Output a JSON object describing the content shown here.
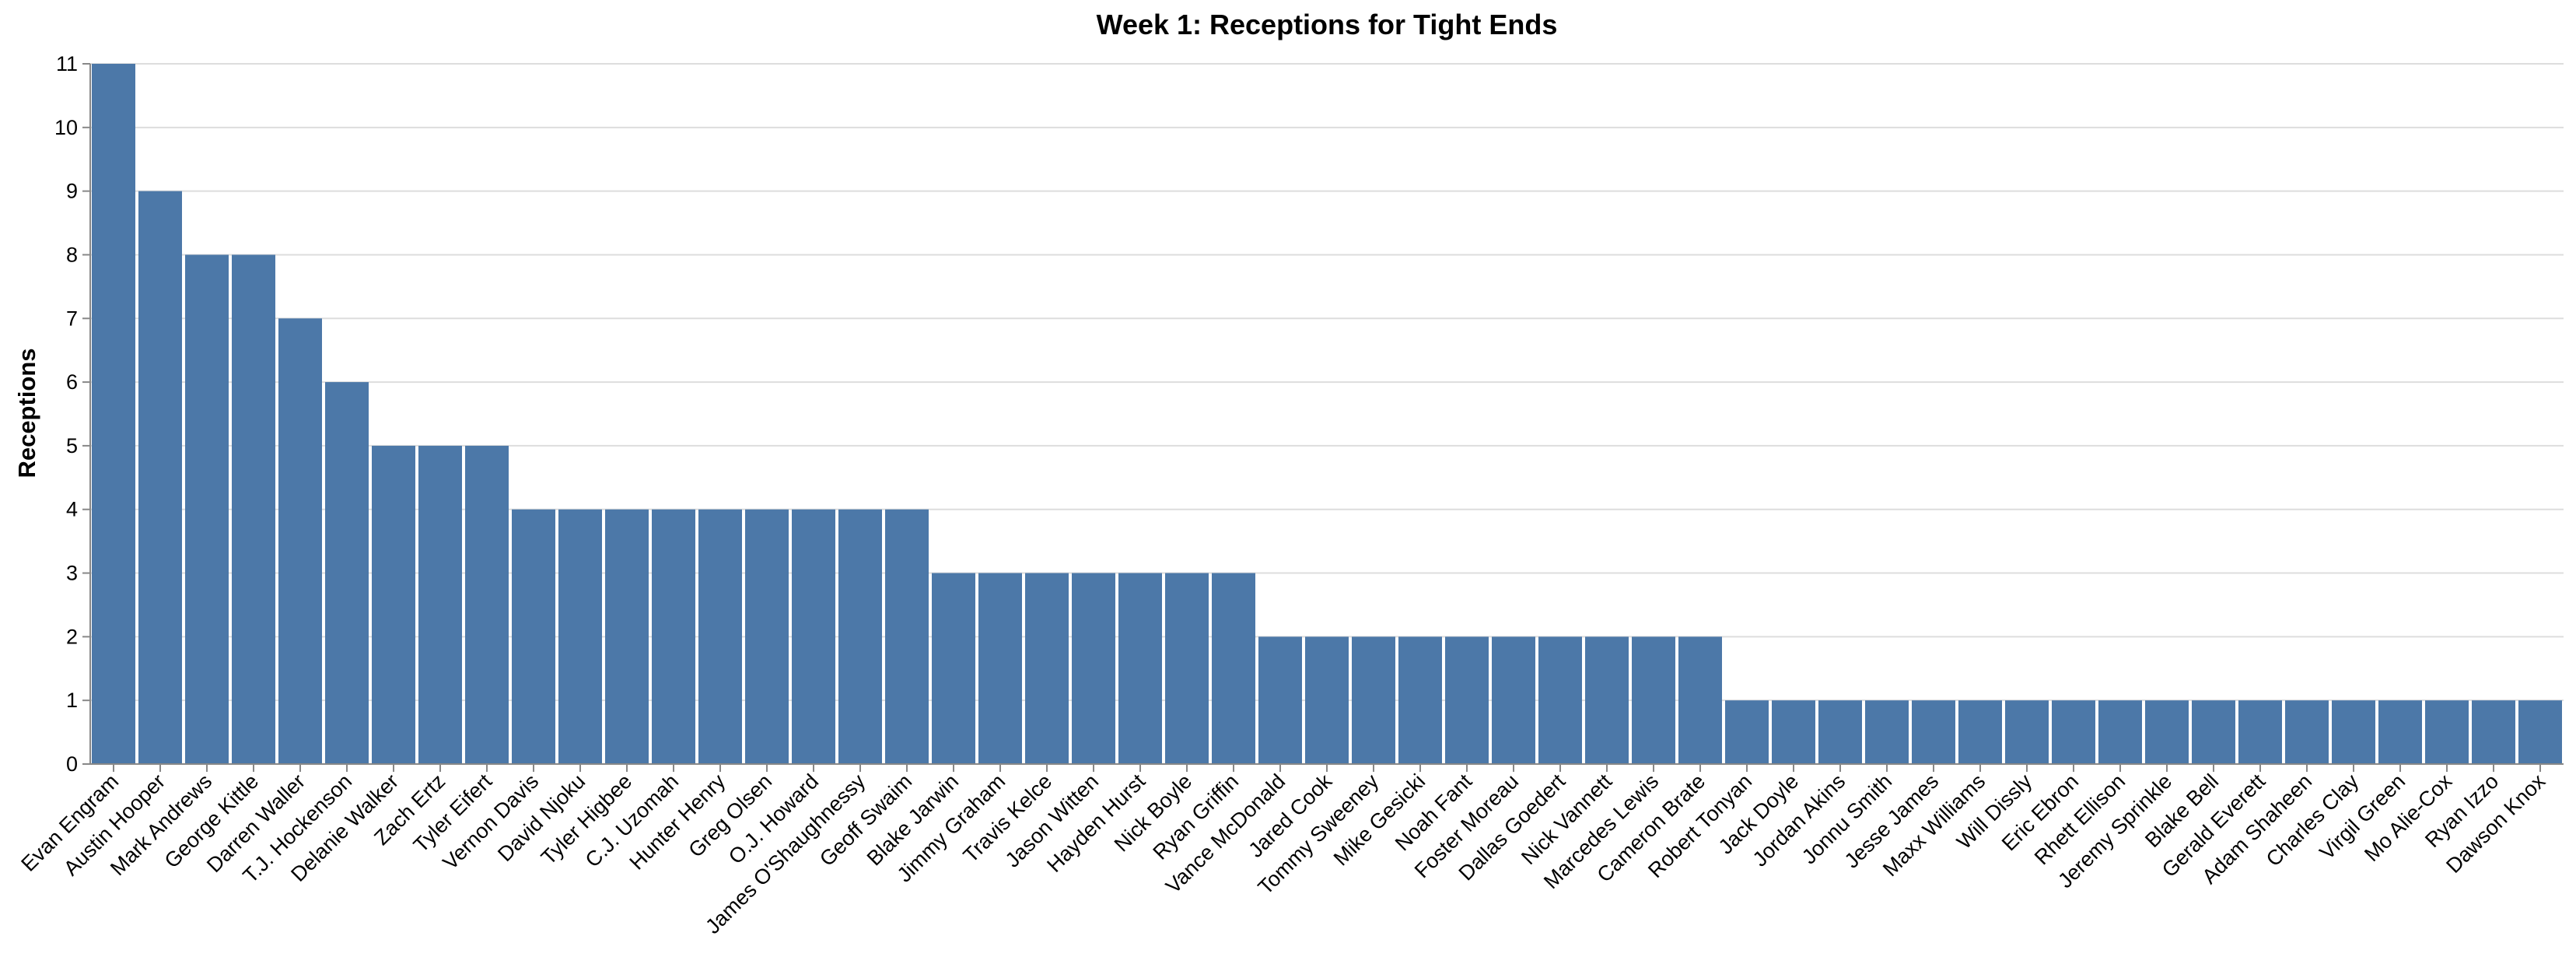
{
  "chart_data": {
    "type": "bar",
    "title": "Week 1: Receptions for Tight Ends",
    "xlabel": "",
    "ylabel": "Receptions",
    "ylim": [
      0,
      11
    ],
    "yticks": [
      "0",
      "1",
      "2",
      "3",
      "4",
      "5",
      "6",
      "7",
      "8",
      "9",
      "10",
      "11"
    ],
    "grid": true,
    "bar_color": "#4c78a8",
    "categories": [
      "Evan Engram",
      "Austin Hooper",
      "Mark Andrews",
      "George Kittle",
      "Darren Waller",
      "T.J. Hockenson",
      "Delanie Walker",
      "Zach Ertz",
      "Tyler Eifert",
      "Vernon Davis",
      "David Njoku",
      "Tyler Higbee",
      "C.J. Uzomah",
      "Hunter Henry",
      "Greg Olsen",
      "O.J. Howard",
      "James O'Shaughnessy",
      "Geoff Swaim",
      "Blake Jarwin",
      "Jimmy Graham",
      "Travis Kelce",
      "Jason Witten",
      "Hayden Hurst",
      "Nick Boyle",
      "Ryan Griffin",
      "Vance McDonald",
      "Jared Cook",
      "Tommy Sweeney",
      "Mike Gesicki",
      "Noah Fant",
      "Foster Moreau",
      "Dallas Goedert",
      "Nick Vannett",
      "Marcedes Lewis",
      "Cameron Brate",
      "Robert Tonyan",
      "Jack Doyle",
      "Jordan Akins",
      "Jonnu Smith",
      "Jesse James",
      "Maxx Williams",
      "Will Dissly",
      "Eric Ebron",
      "Rhett Ellison",
      "Jeremy Sprinkle",
      "Blake Bell",
      "Gerald Everett",
      "Adam Shaheen",
      "Charles Clay",
      "Virgil Green",
      "Mo Alie-Cox",
      "Ryan Izzo",
      "Dawson Knox"
    ],
    "values": [
      11,
      9,
      8,
      8,
      7,
      6,
      5,
      5,
      5,
      4,
      4,
      4,
      4,
      4,
      4,
      4,
      4,
      4,
      3,
      3,
      3,
      3,
      3,
      3,
      3,
      2,
      2,
      2,
      2,
      2,
      2,
      2,
      2,
      2,
      2,
      1,
      1,
      1,
      1,
      1,
      1,
      1,
      1,
      1,
      1,
      1,
      1,
      1,
      1,
      1,
      1,
      1,
      1
    ]
  }
}
